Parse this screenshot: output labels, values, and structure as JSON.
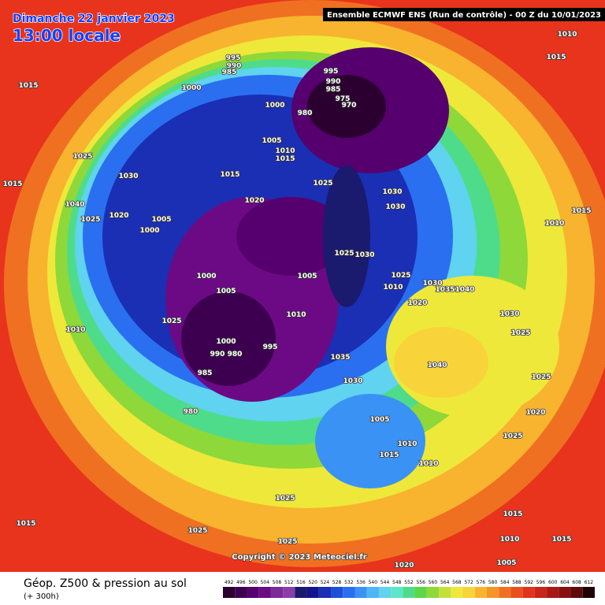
{
  "header": {
    "date": "Dimanche 22 janvier 2023",
    "time": "13:00 locale",
    "run": "Ensemble ECMWF ENS  (Run de contrôle)  -  00 Z du 10/01/2023"
  },
  "copyright": "Copyright © 2023 Meteociel.fr",
  "footer": {
    "title": "Géop. Z500 & pression au sol",
    "lead": "(+ 300h)"
  },
  "isobars": [
    995,
    990,
    985,
    1000,
    1015,
    995,
    990,
    985,
    980,
    975,
    970,
    1000,
    1005,
    1010,
    1015,
    1010,
    1015,
    1025,
    1015,
    1030,
    1040,
    1025,
    1020,
    1000,
    1005,
    1025,
    1030,
    1030,
    1015,
    1020,
    1025,
    1030,
    1000,
    1005,
    1005,
    1010,
    1025,
    1010,
    1000,
    990,
    980,
    985,
    995,
    980,
    1035,
    1030,
    1005,
    1010,
    1015,
    1010,
    1040,
    1030,
    1025,
    1025,
    1020,
    1025,
    1010,
    1015,
    1015,
    1025,
    1025,
    1025,
    1020,
    1015,
    1010,
    1015,
    1005,
    1035,
    1040,
    1020,
    1010,
    1025,
    1030
  ],
  "scale": {
    "labels": [
      492,
      496,
      500,
      504,
      508,
      512,
      516,
      520,
      524,
      528,
      532,
      536,
      540,
      544,
      548,
      552,
      556,
      560,
      564,
      568,
      572,
      576,
      580,
      584,
      588,
      592,
      596,
      600,
      604,
      608,
      612
    ],
    "colors": [
      "#2b0030",
      "#3d0050",
      "#55006e",
      "#6c0a85",
      "#7d2a9a",
      "#8a3fa8",
      "#1a1a6e",
      "#14148c",
      "#1a2fb4",
      "#1f4fd8",
      "#2a6ff0",
      "#3a92f5",
      "#4fb5f5",
      "#5fd3f0",
      "#5ee6c8",
      "#4fdc8a",
      "#5cd64a",
      "#8ed83a",
      "#c4e03a",
      "#eee83a",
      "#f8d43a",
      "#f8b42e",
      "#f59428",
      "#f07022",
      "#e8501e",
      "#e0341c",
      "#c82418",
      "#a81814",
      "#881010",
      "#600a0a",
      "#200404"
    ]
  }
}
